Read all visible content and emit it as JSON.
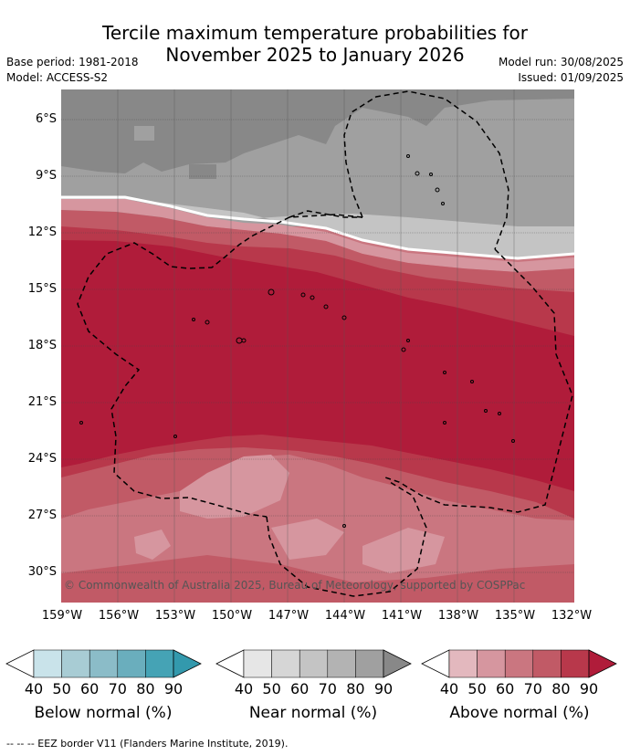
{
  "title_line1": "Tercile maximum temperature probabilities for",
  "title_line2": "November 2025 to January 2026",
  "base_period": "Base period: 1981-2018",
  "model": "Model: ACCESS-S2",
  "model_run": "Model run: 30/08/2025",
  "issued": "Issued: 01/09/2025",
  "copyright": "© Commonwealth of Australia 2025, Bureau of Meteorology, supported by COSPPac",
  "footnote": "--  --  -- EEZ border V11 (Flanders Marine Institute, 2019).",
  "lat_labels": [
    "6°S",
    "9°S",
    "12°S",
    "15°S",
    "18°S",
    "21°S",
    "24°S",
    "27°S",
    "30°S"
  ],
  "lon_labels": [
    "159°W",
    "156°W",
    "153°W",
    "150°W",
    "147°W",
    "144°W",
    "141°W",
    "138°W",
    "135°W",
    "132°W"
  ],
  "colorbars": [
    {
      "label": "Below normal (%)",
      "ticks": [
        "40",
        "50",
        "60",
        "70",
        "80",
        "90"
      ],
      "colors": [
        "#c9e3ea",
        "#a8ccd4",
        "#8bbcc8",
        "#6aaebd",
        "#45a3b5",
        "#3399ad"
      ]
    },
    {
      "label": "Near normal (%)",
      "ticks": [
        "40",
        "50",
        "60",
        "70",
        "80",
        "90"
      ],
      "colors": [
        "#e6e6e6",
        "#d6d6d6",
        "#c4c4c4",
        "#b3b3b3",
        "#a0a0a0",
        "#888888"
      ]
    },
    {
      "label": "Above normal (%)",
      "ticks": [
        "40",
        "50",
        "60",
        "70",
        "80",
        "90"
      ],
      "colors": [
        "#e3b8be",
        "#d6969f",
        "#ca7680",
        "#c15a66",
        "#b8384b",
        "#b01c3a"
      ]
    }
  ],
  "map_colors": {
    "near_90": "#888888",
    "near_80": "#a0a0a0",
    "near_70": "#b3b3b3",
    "near_60": "#c4c4c4",
    "above_50": "#d6969f",
    "above_60": "#ca7680",
    "above_70": "#c15a66",
    "above_80": "#b8384b",
    "above_90": "#b01c3a"
  }
}
